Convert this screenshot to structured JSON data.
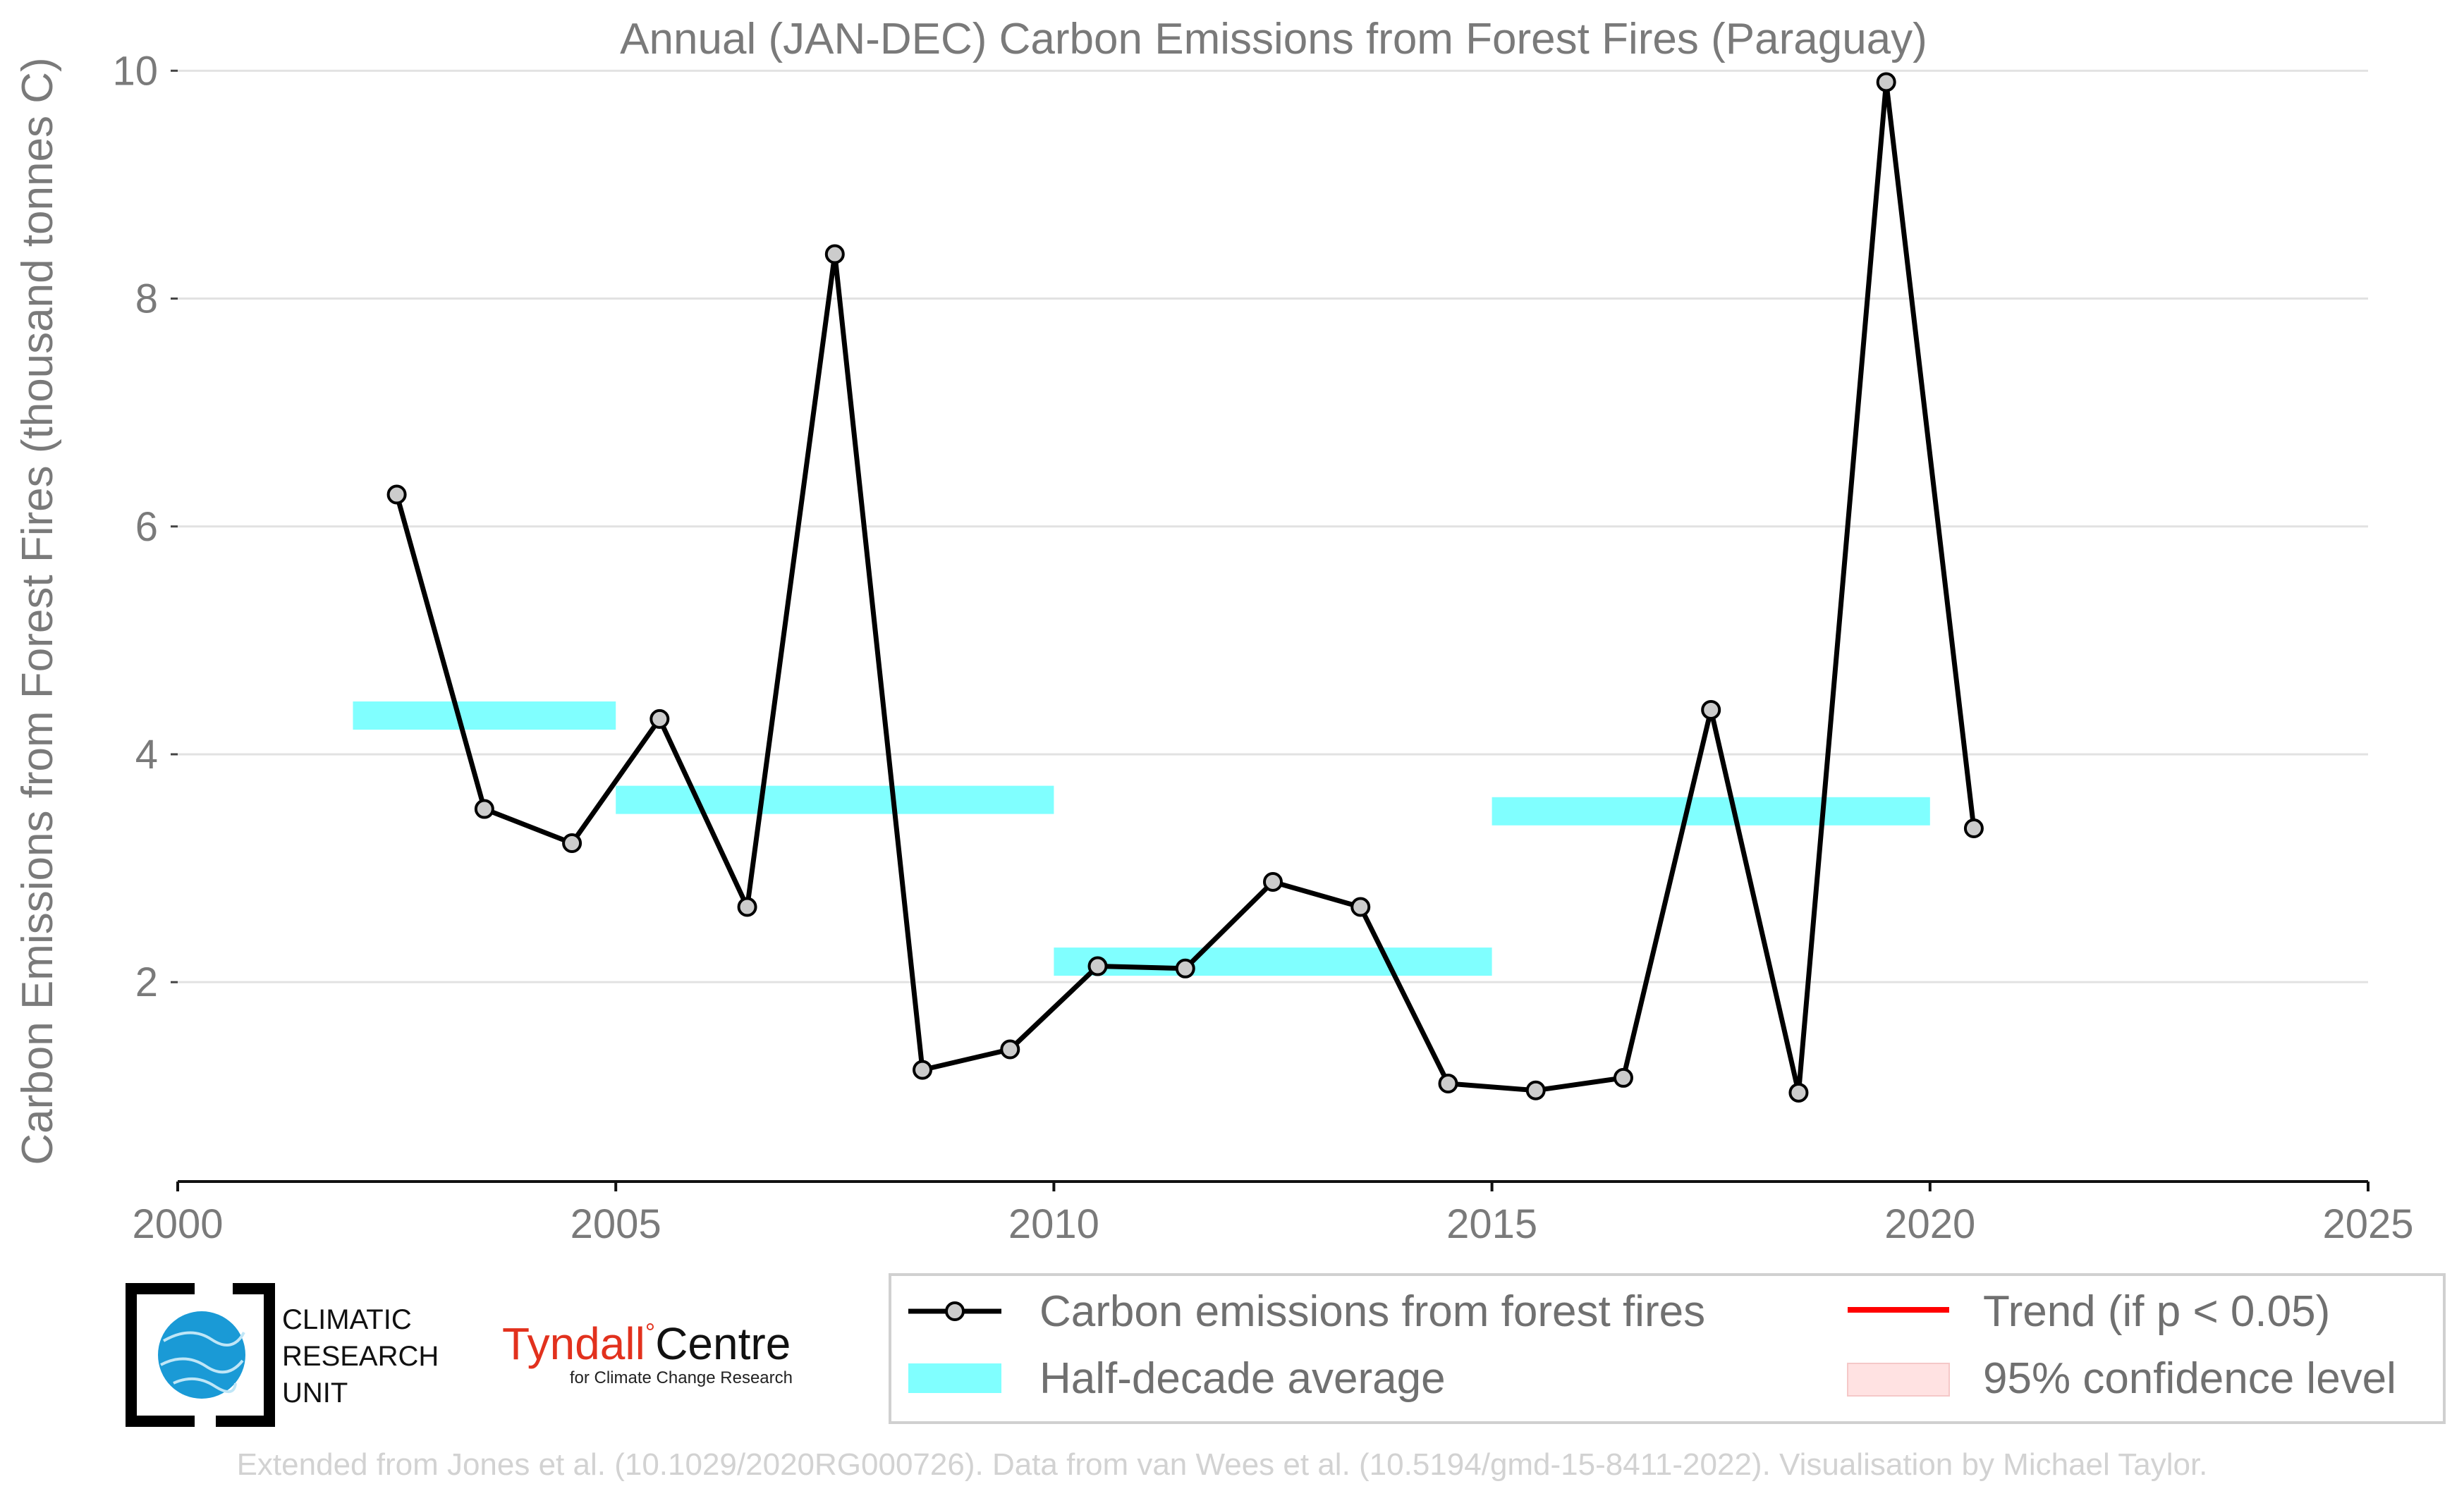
{
  "chart_data": {
    "type": "line",
    "title": "Annual (JAN-DEC) Carbon Emissions from Forest Fires (Paraguay)",
    "xlabel": "",
    "ylabel": "Carbon Emissions from Forest Fires (thousand tonnes C)",
    "xlim": [
      2000,
      2025
    ],
    "ylim": [
      0.25,
      10.2
    ],
    "x_ticks": [
      "2000",
      "2005",
      "2010",
      "2015",
      "2020",
      "2025"
    ],
    "y_ticks": [
      "2",
      "4",
      "6",
      "8",
      "10"
    ],
    "grid": "horizontal",
    "legend_position": "bottom-right",
    "series": [
      {
        "name": "Carbon emissions from forest fires",
        "color": "#000000",
        "marker_color": "#cccccc",
        "x": [
          2002.5,
          2003.5,
          2004.5,
          2005.5,
          2006.5,
          2007.5,
          2008.5,
          2009.5,
          2010.5,
          2011.5,
          2012.5,
          2013.5,
          2014.5,
          2015.5,
          2016.5,
          2017.5,
          2018.5,
          2019.5,
          2020.5
        ],
        "y": [
          6.28,
          3.52,
          3.22,
          4.31,
          2.66,
          8.39,
          1.23,
          1.41,
          2.14,
          2.12,
          2.88,
          2.66,
          1.11,
          1.05,
          1.16,
          4.39,
          1.03,
          9.9,
          3.35
        ]
      }
    ],
    "half_decade_average": {
      "name": "Half-decade average",
      "color": "#80ffff",
      "segments": [
        {
          "x0": 2002,
          "x1": 2005,
          "y": 4.34
        },
        {
          "x0": 2005,
          "x1": 2010,
          "y": 3.6
        },
        {
          "x0": 2010,
          "x1": 2015,
          "y": 2.18
        },
        {
          "x0": 2015,
          "x1": 2020,
          "y": 3.5
        }
      ]
    },
    "legend": [
      {
        "label": "Carbon emissions from forest fires",
        "kind": "line-marker",
        "color": "#000000"
      },
      {
        "label": "Trend (if p < 0.05)",
        "kind": "line",
        "color": "#ff0000"
      },
      {
        "label": "Half-decade average",
        "kind": "band",
        "color": "#80ffff"
      },
      {
        "label": "95% confidence level",
        "kind": "band",
        "color": "#ffe2e2"
      }
    ]
  },
  "logos": {
    "cru": [
      "CLIMATIC",
      "RESEARCH",
      "UNIT"
    ],
    "tyndall_main": "Tyndall",
    "tyndall_centre": "Centre",
    "tyndall_sub": "for Climate Change Research"
  },
  "credit": "Extended from Jones et al. (10.1029/2020RG000726). Data from van Wees et al. (10.5194/gmd-15-8411-2022). Visualisation by Michael Taylor."
}
